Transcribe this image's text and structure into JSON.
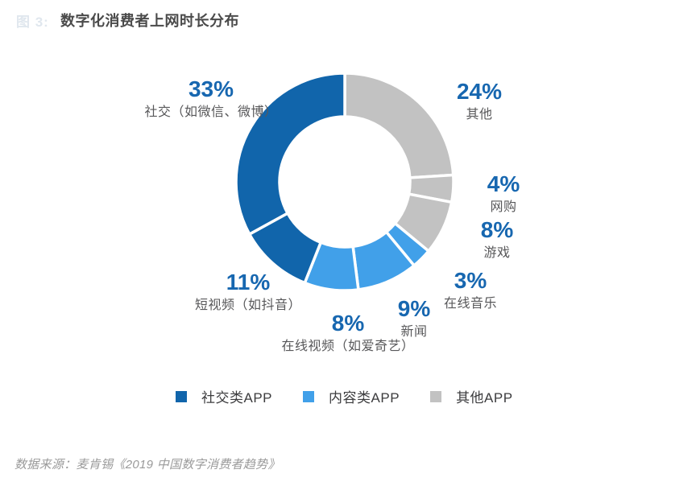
{
  "figure": {
    "watermark": "图 3:",
    "title": "数字化消费者上网时长分布"
  },
  "source_note": "数据来源：麦肯锡《2019 中国数字消费者趋势》",
  "chart_data": {
    "type": "pie",
    "subtype": "donut",
    "title": "数字化消费者上网时长分布",
    "unit": "%",
    "start_angle_deg": 0,
    "direction": "clockwise",
    "total": 100,
    "segments": [
      {
        "label": "其他",
        "pct": "24%",
        "value": 24,
        "group": "其他APP",
        "color": "#c2c2c2"
      },
      {
        "label": "网购",
        "pct": "4%",
        "value": 4,
        "group": "其他APP",
        "color": "#c2c2c2"
      },
      {
        "label": "游戏",
        "pct": "8%",
        "value": 8,
        "group": "其他APP",
        "color": "#c2c2c2"
      },
      {
        "label": "在线音乐",
        "pct": "3%",
        "value": 3,
        "group": "内容类APP",
        "color": "#41a0e9"
      },
      {
        "label": "新闻",
        "pct": "9%",
        "value": 9,
        "group": "内容类APP",
        "color": "#41a0e9"
      },
      {
        "label": "在线视频（如爱奇艺）",
        "pct": "8%",
        "value": 8,
        "group": "内容类APP",
        "color": "#41a0e9"
      },
      {
        "label": "短视频（如抖音）",
        "pct": "11%",
        "value": 11,
        "group": "社交类APP",
        "color": "#1165ab"
      },
      {
        "label": "社交（如微信、微博）",
        "pct": "33%",
        "value": 33,
        "group": "社交类APP",
        "color": "#1165ab"
      }
    ],
    "legend": [
      {
        "label": "社交类APP",
        "color": "#1165ab"
      },
      {
        "label": "内容类APP",
        "color": "#41a0e9"
      },
      {
        "label": "其他APP",
        "color": "#c2c2c2"
      }
    ],
    "colors": {
      "dark_blue": "#1165ab",
      "light_blue": "#41a0e9",
      "gray": "#c2c2c2",
      "percent_text": "#1767b0",
      "label_text": "#58585a"
    },
    "layout": {
      "legend_position": "bottom",
      "hole": true
    }
  }
}
